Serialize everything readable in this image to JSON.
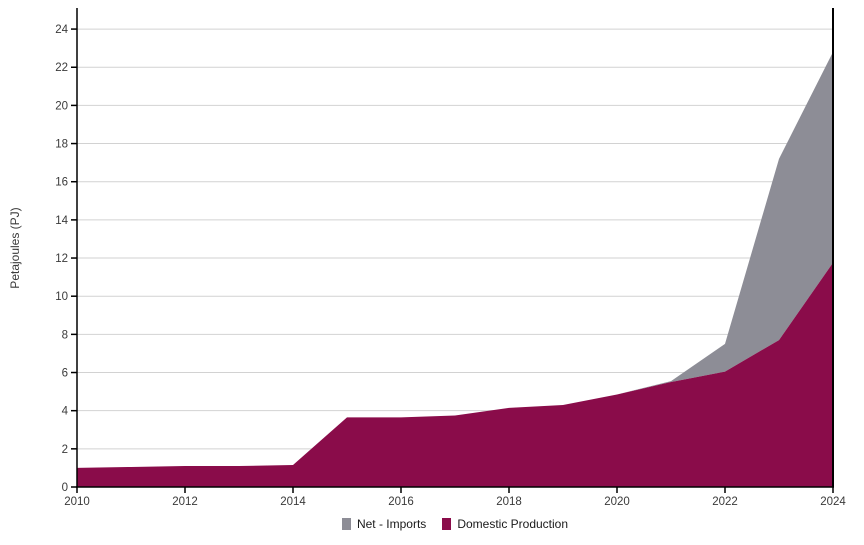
{
  "chart": {
    "ylabel": "Petajoules (PJ)",
    "legend": [
      {
        "id": "net-imports",
        "label": "Net - Imports",
        "color": "#8D8D96"
      },
      {
        "id": "domestic-production",
        "label": "Domestic Production",
        "color": "#8A0C4A"
      }
    ]
  },
  "chart_data": {
    "type": "area",
    "stacked": true,
    "title": "",
    "xlabel": "",
    "ylabel": "Petajoules (PJ)",
    "x": [
      2010,
      2011,
      2012,
      2013,
      2014,
      2015,
      2016,
      2017,
      2018,
      2019,
      2020,
      2021,
      2022,
      2023,
      2024
    ],
    "series": [
      {
        "name": "Domestic Production",
        "color": "#8A0C4A",
        "values": [
          1.0,
          1.05,
          1.1,
          1.1,
          1.15,
          3.65,
          3.65,
          3.75,
          4.15,
          4.3,
          4.85,
          5.5,
          6.05,
          7.7,
          11.75
        ]
      },
      {
        "name": "Net - Imports",
        "color": "#8D8D96",
        "values": [
          0,
          0,
          0,
          0,
          0,
          0,
          0,
          0,
          0,
          0,
          0,
          0.05,
          1.45,
          9.5,
          11.05
        ]
      }
    ],
    "xlim": [
      2010,
      2024
    ],
    "ylim": [
      0,
      25
    ],
    "yticks": [
      0,
      2,
      4,
      6,
      8,
      10,
      12,
      14,
      16,
      18,
      20,
      22,
      24
    ],
    "xticks": [
      2010,
      2012,
      2014,
      2016,
      2018,
      2020,
      2022,
      2024
    ],
    "grid": true,
    "grid_color": "#D2D2D2",
    "axis_color": "#000000",
    "legend_position": "bottom"
  }
}
